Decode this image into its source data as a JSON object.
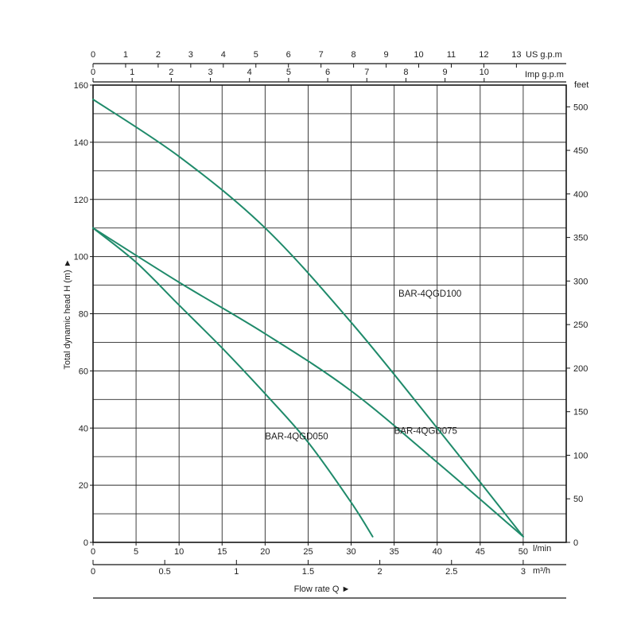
{
  "chart_data": {
    "type": "line",
    "title": "",
    "xlabel": "Flow rate Q ►",
    "ylabel": "Total dynamic head H (m) ►",
    "xlim": [
      0,
      55
    ],
    "ylim": [
      0,
      160
    ],
    "x_unit": "l/min",
    "grid": true,
    "line_color": "#1f8a6a",
    "x_ticks": [
      0,
      5,
      10,
      15,
      20,
      25,
      30,
      35,
      40,
      45,
      50
    ],
    "y_ticks": [
      0,
      20,
      40,
      60,
      80,
      100,
      120,
      140,
      160
    ],
    "secondary_axes": {
      "bottom_m3h": {
        "unit": "m³/h",
        "ticks": [
          0,
          0.5,
          1,
          1.5,
          2,
          2.5,
          3
        ],
        "per_x": 0.06
      },
      "top_us_gpm": {
        "unit": "US g.p.m",
        "ticks": [
          0,
          1,
          2,
          3,
          4,
          5,
          6,
          7,
          8,
          9,
          10,
          11,
          12,
          13
        ],
        "per_x": 0.26417
      },
      "top_imp_gpm": {
        "unit": "Imp g.p.m",
        "ticks": [
          0,
          1,
          2,
          3,
          4,
          5,
          6,
          7,
          8,
          9,
          10
        ],
        "per_x": 0.21997
      },
      "right_feet": {
        "unit": "feet",
        "ticks": [
          0,
          50,
          100,
          150,
          200,
          250,
          300,
          350,
          400,
          450,
          500
        ],
        "per_y": 3.2808
      }
    },
    "series": [
      {
        "name": "BAR-4QGD050",
        "points": [
          [
            0,
            110
          ],
          [
            5,
            98
          ],
          [
            10,
            83
          ],
          [
            15,
            68
          ],
          [
            20,
            52
          ],
          [
            25,
            35
          ],
          [
            30,
            14
          ],
          [
            32.5,
            2
          ]
        ],
        "label_at": [
          20,
          36
        ]
      },
      {
        "name": "BAR-4QGD075",
        "points": [
          [
            0,
            110
          ],
          [
            10,
            91
          ],
          [
            20,
            73
          ],
          [
            30,
            53
          ],
          [
            40,
            28
          ],
          [
            50,
            2
          ]
        ],
        "label_at": [
          35,
          38
        ]
      },
      {
        "name": "BAR-4QGD100",
        "points": [
          [
            0,
            155
          ],
          [
            10,
            135
          ],
          [
            20,
            110
          ],
          [
            30,
            77
          ],
          [
            40,
            40
          ],
          [
            50,
            2
          ]
        ],
        "label_at": [
          35.5,
          86
        ]
      }
    ]
  }
}
